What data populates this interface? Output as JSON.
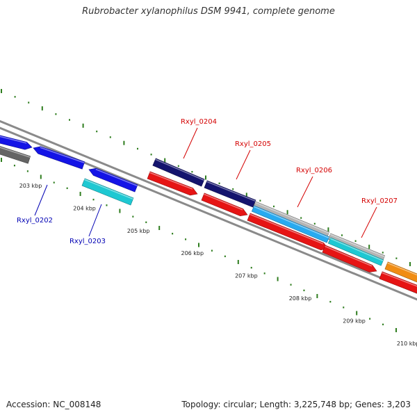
{
  "title": "Rubrobacter xylanophilus DSM 9941, complete genome",
  "footer": {
    "accession": "Accession: NC_008148",
    "summary": "Topology: circular; Length: 3,225,748 bp; Genes: 3,203"
  },
  "scale": {
    "ticks": [
      {
        "kbp": 203,
        "label": "203 kbp"
      },
      {
        "kbp": 204,
        "label": "204 kbp"
      },
      {
        "kbp": 205,
        "label": "205 kbp"
      },
      {
        "kbp": 206,
        "label": "206 kbp"
      },
      {
        "kbp": 207,
        "label": "207 kbp"
      },
      {
        "kbp": 208,
        "label": "208 kbp"
      },
      {
        "kbp": 209,
        "label": "209 kbp"
      },
      {
        "kbp": 210,
        "label": "210 kbp"
      }
    ]
  },
  "colors": {
    "backbone": "#8a8a8a",
    "tick": "#2e7d1e",
    "label_forward": "#d40000",
    "label_reverse": "#0000b4",
    "blue": "#1414e6",
    "cyan": "#1ec8d2",
    "navy": "#14146e",
    "red": "#e61414",
    "gray": "#646464",
    "lightgray": "#b4b4b4",
    "skyblue": "#28aaf0",
    "orange": "#f08c14"
  },
  "gene_labels": [
    {
      "id": "Rxyl_0202",
      "text": "Rxyl_0202",
      "strand": "reverse"
    },
    {
      "id": "Rxyl_0203",
      "text": "Rxyl_0203",
      "strand": "reverse"
    },
    {
      "id": "Rxyl_0204",
      "text": "Rxyl_0204",
      "strand": "forward"
    },
    {
      "id": "Rxyl_0205",
      "text": "Rxyl_0205",
      "strand": "forward"
    },
    {
      "id": "Rxyl_0206",
      "text": "Rxyl_0206",
      "strand": "forward"
    },
    {
      "id": "Rxyl_0207",
      "text": "Rxyl_0207",
      "strand": "forward"
    }
  ]
}
